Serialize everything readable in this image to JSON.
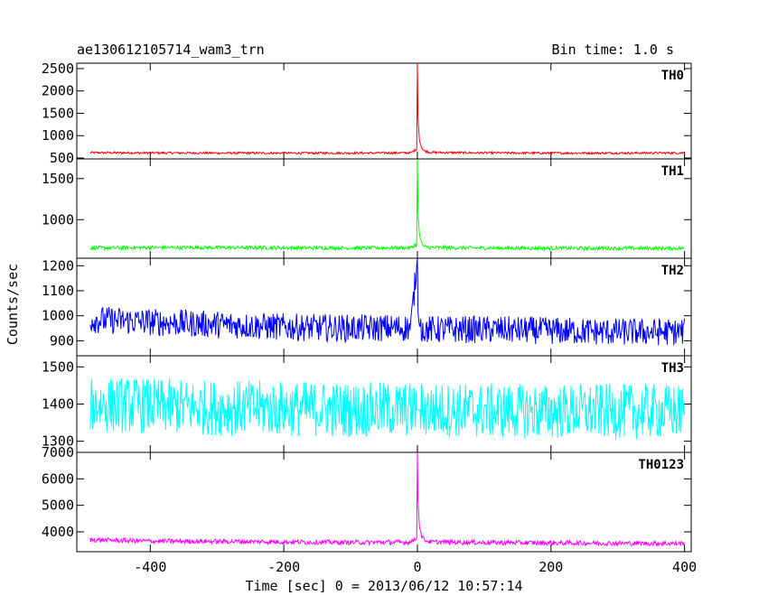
{
  "header": {
    "left": "ae130612105714_wam3_trn",
    "right": "Bin time: 1.0 s"
  },
  "chart_data": {
    "type": "line",
    "xlabel": "Time [sec] 0 = 2013/06/12 10:57:14",
    "ylabel": "Counts/sec",
    "xlim": [
      -510,
      410
    ],
    "x_ticks": [
      -400,
      -200,
      0,
      200,
      400
    ],
    "bin_time_s": 1.0,
    "panels": [
      {
        "label": "TH0",
        "color": "#ff0000",
        "ylim": [
          480,
          2620
        ],
        "yticks": [
          500,
          1000,
          1500,
          2000,
          2500
        ],
        "series": [
          {
            "x": [
              -490,
              -400,
              -300,
              -200,
              -100,
              -10,
              -1,
              0,
              1,
              3,
              6,
              10,
              20,
              100,
              200,
              300,
              400
            ],
            "y": [
              620,
              615,
              612,
              610,
              612,
              615,
              700,
              2620,
              1400,
              900,
              750,
              660,
              625,
              615,
              610,
              612,
              615
            ]
          }
        ]
      },
      {
        "label": "TH1",
        "color": "#00ff00",
        "ylim": [
          530,
          1740
        ],
        "yticks": [
          1000,
          1500
        ],
        "series": [
          {
            "x": [
              -490,
              -400,
              -300,
              -200,
              -100,
              -10,
              -1,
              0,
              1,
              3,
              6,
              10,
              20,
              100,
              200,
              300,
              400
            ],
            "y": [
              655,
              660,
              660,
              658,
              655,
              658,
              700,
              1740,
              1100,
              820,
              720,
              670,
              660,
              655,
              652,
              652,
              650
            ]
          }
        ]
      },
      {
        "label": "TH2",
        "color": "#0000ff",
        "ylim": [
          840,
          1230
        ],
        "yticks": [
          900,
          1000,
          1100,
          1200
        ],
        "series": [
          {
            "x": [
              -490,
              -400,
              -300,
              -200,
              -100,
              -10,
              0,
              1,
              3,
              10,
              100,
              200,
              300,
              400
            ],
            "y": [
              985,
              975,
              965,
              955,
              950,
              952,
              1230,
              1010,
              960,
              945,
              945,
              940,
              935,
              935
            ]
          }
        ]
      },
      {
        "label": "TH3",
        "color": "#00ffff",
        "ylim": [
          1270,
          1530
        ],
        "yticks": [
          1300,
          1400,
          1500
        ],
        "series": [
          {
            "x": [
              -490,
              -400,
              -300,
              -200,
              -100,
              0,
              100,
              200,
              300,
              400
            ],
            "y": [
              1400,
              1395,
              1390,
              1388,
              1385,
              1385,
              1382,
              1380,
              1380,
              1380
            ]
          }
        ]
      },
      {
        "label": "TH0123",
        "color": "#ff00ff",
        "ylim": [
          3250,
          7000
        ],
        "yticks": [
          4000,
          5000,
          6000,
          7000
        ],
        "series": [
          {
            "x": [
              -490,
              -400,
              -300,
              -200,
              -100,
              -10,
              -1,
              0,
              1,
              3,
              6,
              10,
              20,
              100,
              200,
              300,
              400
            ],
            "y": [
              3700,
              3650,
              3640,
              3620,
              3600,
              3610,
              3800,
              7000,
              5200,
              4200,
              3900,
              3700,
              3620,
              3600,
              3580,
              3570,
              3560
            ]
          }
        ]
      }
    ]
  }
}
